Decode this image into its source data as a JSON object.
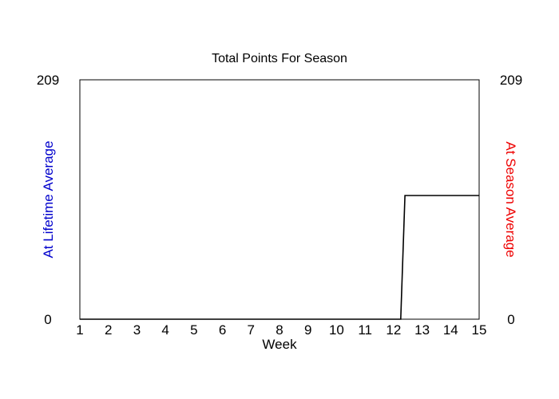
{
  "chart_data": {
    "type": "line",
    "title": "Total Points For Season",
    "xlabel": "Week",
    "ylabel_left": "At Lifetime Average",
    "ylabel_right": "At Season Average",
    "ylim": [
      0,
      209
    ],
    "xlim": [
      1,
      15
    ],
    "x_ticks": [
      "1",
      "2",
      "3",
      "4",
      "5",
      "6",
      "7",
      "8",
      "9",
      "10",
      "11",
      "12",
      "13",
      "14",
      "15"
    ],
    "y_left_ticks": [
      "0",
      "209"
    ],
    "y_right_ticks": [
      "0",
      "209"
    ],
    "grid": false,
    "colors": {
      "left_label": "#0000cc",
      "right_label": "#ee0000",
      "line": "#000000"
    },
    "series": [
      {
        "x": [
          1,
          2,
          3,
          4,
          5,
          6,
          7,
          8,
          9,
          10,
          11,
          12,
          12.25,
          12.4,
          13,
          14,
          15
        ],
        "values": [
          0,
          0,
          0,
          0,
          0,
          0,
          0,
          0,
          0,
          0,
          0,
          0,
          0,
          108,
          108,
          108,
          108
        ]
      }
    ]
  }
}
